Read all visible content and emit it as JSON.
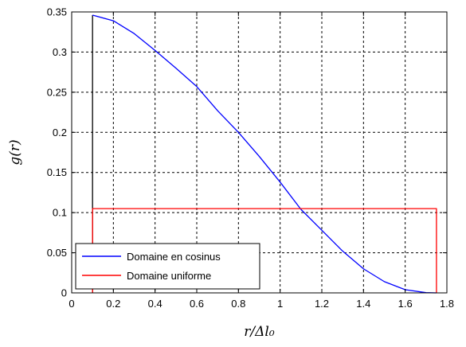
{
  "chart_data": {
    "type": "line",
    "title": "",
    "xlabel": "r/Δl₀",
    "ylabel": "g(r)",
    "xlim": [
      0,
      1.8
    ],
    "ylim": [
      0,
      0.35
    ],
    "xticks": [
      0,
      0.2,
      0.4,
      0.6,
      0.8,
      1,
      1.2,
      1.4,
      1.6,
      1.8
    ],
    "yticks": [
      0,
      0.05,
      0.1,
      0.15,
      0.2,
      0.25,
      0.3,
      0.35
    ],
    "xtick_labels": [
      "0",
      "0.2",
      "0.4",
      "0.6",
      "0.8",
      "1",
      "1.2",
      "1.4",
      "1.6",
      "1.8"
    ],
    "ytick_labels": [
      "0",
      "0.05",
      "0.1",
      "0.15",
      "0.2",
      "0.25",
      "0.3",
      "0.35"
    ],
    "grid": true,
    "legend_position": "bottom-left",
    "series": [
      {
        "name": "Domaine en cosinus",
        "color": "#0000ff",
        "x": [
          0.1,
          0.2,
          0.3,
          0.4,
          0.5,
          0.6,
          0.7,
          0.8,
          0.9,
          1.0,
          1.1,
          1.2,
          1.3,
          1.4,
          1.5,
          1.6,
          1.7,
          1.75
        ],
        "y": [
          0.346,
          0.339,
          0.323,
          0.302,
          0.28,
          0.257,
          0.227,
          0.2,
          0.17,
          0.138,
          0.104,
          0.078,
          0.052,
          0.03,
          0.014,
          0.004,
          0.0003,
          0.0
        ]
      },
      {
        "name": "Domaine uniforme",
        "color": "#ff0000",
        "x": [
          0.1,
          0.1,
          1.75,
          1.75
        ],
        "y": [
          0.0,
          0.105,
          0.105,
          0.0
        ]
      }
    ],
    "extra_lines": [
      {
        "color": "#000000",
        "x": [
          0.1,
          0.1
        ],
        "y": [
          0.0,
          0.346
        ]
      }
    ]
  }
}
